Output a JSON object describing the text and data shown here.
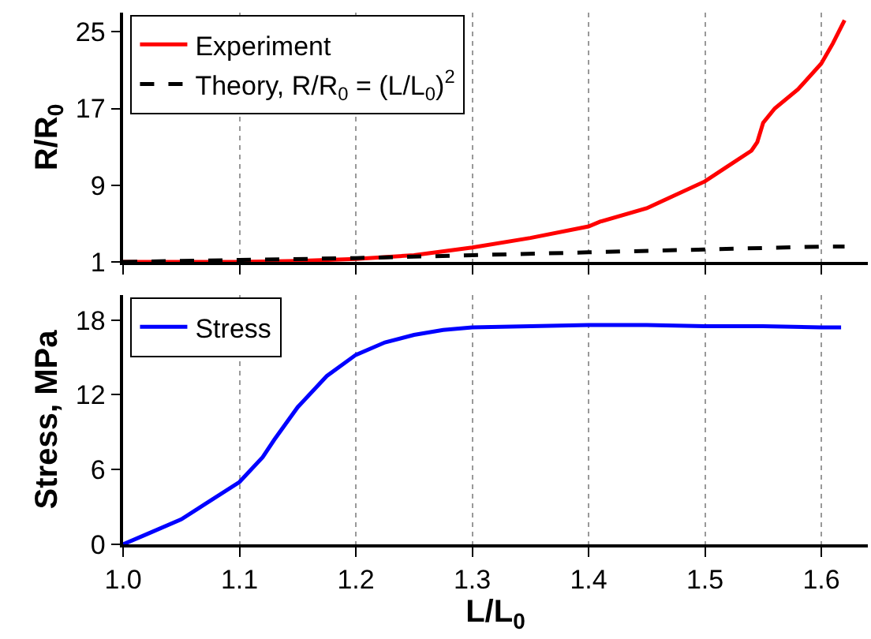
{
  "chart_data": [
    {
      "type": "line",
      "ylabel": "R/R$_{0}$",
      "xlim": [
        1.0,
        1.64
      ],
      "xticks": [
        1.0,
        1.1,
        1.2,
        1.3,
        1.4,
        1.5,
        1.6
      ],
      "ylim": [
        1,
        27
      ],
      "yticks": [
        1,
        9,
        17,
        25
      ],
      "grid": "x",
      "legend": "top left",
      "tick_labels": "y",
      "series": [
        {
          "name": "Experiment",
          "color": "#ff0000",
          "line_style": "solid",
          "x": [
            1.0,
            1.05,
            1.1,
            1.15,
            1.2,
            1.25,
            1.3,
            1.35,
            1.4,
            1.41,
            1.45,
            1.5,
            1.52,
            1.54,
            1.545,
            1.55,
            1.56,
            1.58,
            1.6,
            1.61,
            1.62
          ],
          "values": [
            1.0,
            1.0,
            1.0,
            1.1,
            1.3,
            1.7,
            2.5,
            3.5,
            4.7,
            5.2,
            6.6,
            9.4,
            11.0,
            12.6,
            13.5,
            15.5,
            17.0,
            19.0,
            21.7,
            23.8,
            26.2
          ]
        },
        {
          "name": "Theory, R/R$_{0}$ = (L/L$_{0}$)$^{2}$",
          "color": "#000000",
          "line_style": "dashed",
          "x": [
            1.0,
            1.1,
            1.2,
            1.3,
            1.4,
            1.5,
            1.6,
            1.62
          ],
          "values": [
            1.0,
            1.2,
            1.4,
            1.7,
            2.0,
            2.3,
            2.6,
            2.6
          ]
        }
      ]
    },
    {
      "type": "line",
      "xlabel": "L/L$_{0}$",
      "ylabel": "Stress, MPa",
      "xlim": [
        1.0,
        1.64
      ],
      "xticks": [
        {
          "value": 1,
          "label": "1.0"
        },
        1.1,
        1.2,
        1.3,
        1.4,
        1.5,
        1.6
      ],
      "ylim": [
        0,
        20
      ],
      "yticks": [
        0,
        6,
        12,
        18
      ],
      "grid": "x",
      "legend": "top left",
      "series": [
        {
          "name": "Stress",
          "color": "#0000ff",
          "line_style": "solid",
          "x": [
            1.0,
            1.02,
            1.05,
            1.07,
            1.1,
            1.12,
            1.13,
            1.15,
            1.175,
            1.2,
            1.225,
            1.25,
            1.275,
            1.3,
            1.35,
            1.4,
            1.45,
            1.5,
            1.55,
            1.6,
            1.617
          ],
          "values": [
            0,
            0.8,
            2.0,
            3.2,
            5.0,
            7.0,
            8.4,
            11.0,
            13.5,
            15.2,
            16.2,
            16.8,
            17.2,
            17.4,
            17.5,
            17.6,
            17.6,
            17.5,
            17.5,
            17.4,
            17.4
          ]
        }
      ]
    }
  ]
}
